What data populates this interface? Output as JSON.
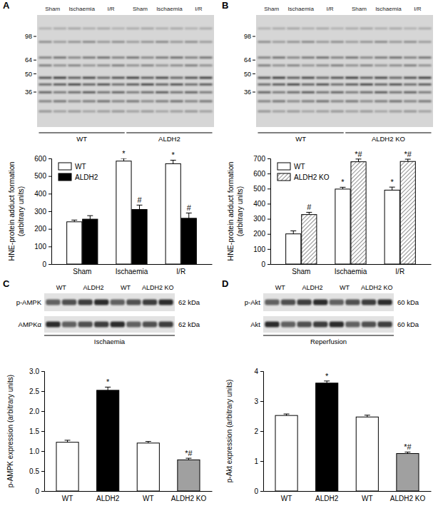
{
  "chart_data": [
    {
      "panel": "A",
      "type": "bar",
      "categories": [
        "Sham",
        "Ischaemia",
        "I/R"
      ],
      "series": [
        {
          "name": "WT",
          "color": "#ffffff",
          "values": [
            240,
            585,
            570
          ],
          "errors": [
            10,
            15,
            20
          ],
          "sig_labels": [
            null,
            "*",
            "*"
          ]
        },
        {
          "name": "ALDH2",
          "color": "#000000",
          "values": [
            255,
            310,
            260
          ],
          "errors": [
            20,
            25,
            30
          ],
          "sig_labels": [
            null,
            "#",
            "#"
          ]
        }
      ],
      "ylabel": [
        "HNE-protein adduct formation",
        "(arbitrary units)"
      ],
      "ylim": [
        0,
        600
      ],
      "yticks": [
        0,
        100,
        200,
        300,
        400,
        500,
        600
      ],
      "legend": "upper left",
      "blot": {
        "lane_labels": [
          "Sham",
          "Ischaemia",
          "I/R",
          "Sham",
          "Ischaemia",
          "I/R"
        ],
        "group_labels": [
          "WT",
          "ALDH2"
        ],
        "markers": [
          98,
          64,
          50,
          36
        ]
      }
    },
    {
      "panel": "B",
      "type": "bar",
      "categories": [
        "Sham",
        "Ischaemia",
        "I/R"
      ],
      "series": [
        {
          "name": "WT",
          "color": "#ffffff",
          "values": [
            200,
            497,
            490
          ],
          "errors": [
            20,
            12,
            20
          ],
          "sig_labels": [
            null,
            "*",
            "*"
          ]
        },
        {
          "name": "ALDH2 KO",
          "color": "#555555",
          "line_style": "hatched",
          "values": [
            328,
            678,
            680
          ],
          "errors": [
            15,
            18,
            15
          ],
          "sig_labels": [
            "#",
            "*#",
            "*#"
          ]
        }
      ],
      "ylabel": [
        "HNE-protein adduct formation",
        "(arbitrary units)"
      ],
      "ylim": [
        0,
        700
      ],
      "yticks": [
        0,
        100,
        200,
        300,
        400,
        500,
        600,
        700
      ],
      "legend": "upper left",
      "blot": {
        "lane_labels": [
          "Sham",
          "Ischaemia",
          "I/R",
          "Sham",
          "Ischaemia",
          "I/R"
        ],
        "group_labels": [
          "WT",
          "ALDH2 KO"
        ],
        "markers": [
          98,
          64,
          50,
          36
        ]
      }
    },
    {
      "panel": "C",
      "type": "bar",
      "categories": [
        "WT",
        "ALDH2",
        "WT",
        "ALDH2 KO"
      ],
      "values": [
        1.22,
        2.52,
        1.2,
        0.78
      ],
      "errors": [
        0.05,
        0.08,
        0.04,
        0.04
      ],
      "sig_labels": [
        null,
        "*",
        null,
        "*#"
      ],
      "colors": [
        "#ffffff",
        "#000000",
        "#ffffff",
        "#a0a0a0"
      ],
      "ylabel": "p-AMPK expression (arbitrary units)",
      "ylim": [
        0,
        3
      ],
      "yticks": [
        0,
        0.5,
        {
          "value": 1,
          "label": "1.0"
        },
        1.5,
        {
          "value": 2,
          "label": "2.0"
        },
        2.5,
        {
          "value": 3,
          "label": "3.0"
        }
      ],
      "blot": {
        "lane_labels": [
          "WT",
          "ALDH2",
          "WT",
          "ALDH2 KO"
        ],
        "rows": [
          {
            "label": "p-AMPK",
            "size": "62 kDa"
          },
          {
            "label": "AMPKα",
            "size": "62 kDa"
          }
        ],
        "caption": "Ischaemia"
      }
    },
    {
      "panel": "D",
      "type": "bar",
      "categories": [
        "WT",
        "ALDH2",
        "WT",
        "ALDH2 KO"
      ],
      "values": [
        2.52,
        3.6,
        2.47,
        1.25
      ],
      "errors": [
        0.05,
        0.07,
        0.06,
        0.05
      ],
      "sig_labels": [
        null,
        "*",
        null,
        "*#"
      ],
      "colors": [
        "#ffffff",
        "#000000",
        "#ffffff",
        "#a0a0a0"
      ],
      "ylabel": "p-Akt expression (arbitrary units)",
      "ylim": [
        0,
        4
      ],
      "yticks": [
        0,
        1,
        2,
        3,
        4
      ],
      "blot": {
        "lane_labels": [
          "WT",
          "ALDH2",
          "WT",
          "ALDH2 KO"
        ],
        "rows": [
          {
            "label": "p-Akt",
            "size": "60 kDa"
          },
          {
            "label": "Akt",
            "size": "60 kDa"
          }
        ],
        "caption": "Reperfusion"
      }
    }
  ]
}
